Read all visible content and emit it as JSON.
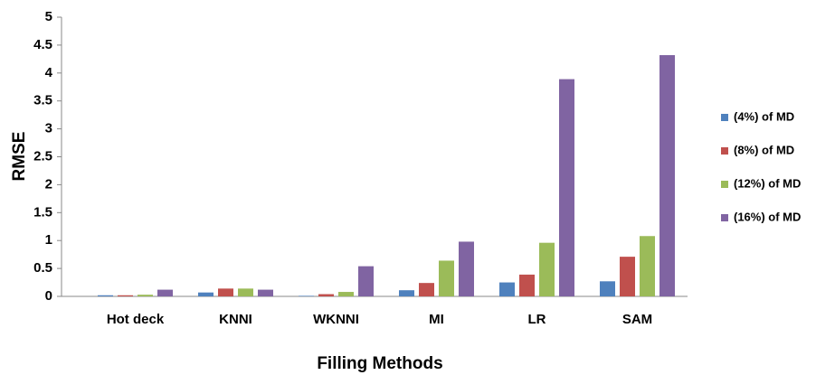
{
  "chart_data": {
    "type": "bar",
    "title": null,
    "x_label": "Filling Methods",
    "y_label": "RMSE",
    "categories": [
      "Hot deck",
      "KNNI",
      "WKNNI",
      "MI",
      "LR",
      "SAM"
    ],
    "series": [
      {
        "name": "(4%) of MD",
        "color": "#4f81bd",
        "values": [
          0.02,
          0.07,
          0.01,
          0.11,
          0.25,
          0.27
        ]
      },
      {
        "name": "(8%) of MD",
        "color": "#c0504d",
        "values": [
          0.02,
          0.14,
          0.04,
          0.24,
          0.39,
          0.71
        ]
      },
      {
        "name": "(12%) of MD",
        "color": "#9bbb59",
        "values": [
          0.03,
          0.14,
          0.08,
          0.64,
          0.96,
          1.08
        ]
      },
      {
        "name": "(16%) of MD",
        "color": "#8064a2",
        "values": [
          0.12,
          0.12,
          0.54,
          0.98,
          3.89,
          4.32
        ]
      }
    ],
    "ylim": [
      0,
      5
    ],
    "yticks": [
      0,
      0.5,
      1,
      1.5,
      2,
      2.5,
      3,
      3.5,
      4,
      4.5,
      5
    ],
    "grid": false,
    "legend": "right"
  }
}
